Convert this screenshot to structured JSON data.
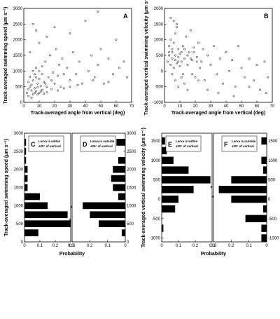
{
  "chart_data": [
    {
      "panel": "A",
      "type": "scatter",
      "xlabel": "Track-averaged angle from vertical (deg)",
      "ylabel": "Track-averaged swimming speed (μm s⁻¹)",
      "xlim": [
        0,
        70
      ],
      "ylim": [
        0,
        3000
      ],
      "xticks": [
        0,
        10,
        20,
        30,
        40,
        50,
        60,
        70
      ],
      "yticks": [
        0,
        500,
        1000,
        1500,
        2000,
        2500,
        3000
      ],
      "points": [
        [
          2,
          300
        ],
        [
          3,
          420
        ],
        [
          3,
          650
        ],
        [
          4,
          500
        ],
        [
          4,
          820
        ],
        [
          5,
          380
        ],
        [
          5,
          560
        ],
        [
          6,
          250
        ],
        [
          6,
          700
        ],
        [
          7,
          450
        ],
        [
          7,
          900
        ],
        [
          8,
          350
        ],
        [
          8,
          1100
        ],
        [
          9,
          600
        ],
        [
          9,
          480
        ],
        [
          10,
          300
        ],
        [
          10,
          750
        ],
        [
          11,
          520
        ],
        [
          12,
          900
        ],
        [
          12,
          400
        ],
        [
          13,
          650
        ],
        [
          14,
          1300
        ],
        [
          15,
          500
        ],
        [
          16,
          800
        ],
        [
          17,
          1500
        ],
        [
          18,
          700
        ],
        [
          19,
          950
        ],
        [
          20,
          600
        ],
        [
          21,
          1700
        ],
        [
          22,
          850
        ],
        [
          23,
          1200
        ],
        [
          24,
          500
        ],
        [
          25,
          1400
        ],
        [
          26,
          900
        ],
        [
          28,
          1100
        ],
        [
          30,
          700
        ],
        [
          32,
          1600
        ],
        [
          34,
          900
        ],
        [
          36,
          1300
        ],
        [
          38,
          600
        ],
        [
          40,
          2600
        ],
        [
          42,
          1000
        ],
        [
          44,
          1500
        ],
        [
          46,
          800
        ],
        [
          48,
          1200
        ],
        [
          50,
          1700
        ],
        [
          52,
          600
        ],
        [
          55,
          1400
        ],
        [
          58,
          900
        ],
        [
          60,
          2000
        ],
        [
          62,
          1100
        ],
        [
          65,
          1300
        ],
        [
          67,
          800
        ],
        [
          4,
          1600
        ],
        [
          6,
          2500
        ],
        [
          8,
          2300
        ],
        [
          10,
          1900
        ],
        [
          15,
          2100
        ],
        [
          20,
          2400
        ],
        [
          30,
          2200
        ],
        [
          48,
          2900
        ],
        [
          3,
          200
        ],
        [
          5,
          150
        ],
        [
          7,
          300
        ],
        [
          9,
          250
        ],
        [
          11,
          350
        ],
        [
          13,
          280
        ],
        [
          15,
          320
        ],
        [
          18,
          420
        ],
        [
          22,
          380
        ],
        [
          26,
          450
        ],
        [
          30,
          500
        ],
        [
          35,
          550
        ],
        [
          45,
          700
        ],
        [
          55,
          650
        ],
        [
          6,
          1000
        ],
        [
          8,
          800
        ],
        [
          10,
          1000
        ],
        [
          12,
          1150
        ],
        [
          14,
          600
        ]
      ]
    },
    {
      "panel": "B",
      "type": "scatter",
      "xlabel": "Track-averaged angle from vertical (deg)",
      "ylabel": "Track-averaged vertical swimming velocity (μm s⁻¹)",
      "xlim": [
        0,
        70
      ],
      "ylim": [
        -1000,
        2000
      ],
      "xticks": [
        0,
        10,
        20,
        30,
        40,
        50,
        60,
        70
      ],
      "yticks": [
        -1000,
        -500,
        0,
        500,
        1000,
        1500,
        2000
      ],
      "points": [
        [
          2,
          300
        ],
        [
          3,
          500
        ],
        [
          3,
          800
        ],
        [
          4,
          200
        ],
        [
          4,
          1000
        ],
        [
          5,
          400
        ],
        [
          5,
          600
        ],
        [
          6,
          100
        ],
        [
          6,
          900
        ],
        [
          7,
          350
        ],
        [
          7,
          1200
        ],
        [
          8,
          250
        ],
        [
          8,
          1500
        ],
        [
          9,
          450
        ],
        [
          9,
          700
        ],
        [
          10,
          150
        ],
        [
          10,
          550
        ],
        [
          11,
          300
        ],
        [
          12,
          800
        ],
        [
          12,
          -100
        ],
        [
          13,
          400
        ],
        [
          14,
          1100
        ],
        [
          15,
          200
        ],
        [
          16,
          600
        ],
        [
          17,
          1300
        ],
        [
          18,
          350
        ],
        [
          19,
          750
        ],
        [
          20,
          -200
        ],
        [
          21,
          450
        ],
        [
          22,
          900
        ],
        [
          23,
          100
        ],
        [
          24,
          300
        ],
        [
          25,
          700
        ],
        [
          26,
          -300
        ],
        [
          28,
          500
        ],
        [
          30,
          200
        ],
        [
          32,
          800
        ],
        [
          34,
          -100
        ],
        [
          36,
          400
        ],
        [
          38,
          -400
        ],
        [
          40,
          600
        ],
        [
          42,
          0
        ],
        [
          44,
          350
        ],
        [
          46,
          -500
        ],
        [
          48,
          800
        ],
        [
          50,
          100
        ],
        [
          52,
          -200
        ],
        [
          55,
          400
        ],
        [
          58,
          -300
        ],
        [
          60,
          200
        ],
        [
          62,
          -600
        ],
        [
          65,
          300
        ],
        [
          67,
          -200
        ],
        [
          4,
          1700
        ],
        [
          6,
          1600
        ],
        [
          8,
          1400
        ],
        [
          5,
          -100
        ],
        [
          7,
          -300
        ],
        [
          9,
          -500
        ],
        [
          11,
          -200
        ],
        [
          13,
          -400
        ],
        [
          15,
          -600
        ],
        [
          18,
          -100
        ],
        [
          22,
          -300
        ],
        [
          28,
          -600
        ],
        [
          35,
          -700
        ],
        [
          45,
          -800
        ],
        [
          55,
          -500
        ],
        [
          66,
          -700
        ],
        [
          3,
          600
        ],
        [
          5,
          700
        ],
        [
          7,
          500
        ],
        [
          9,
          300
        ],
        [
          11,
          600
        ],
        [
          13,
          700
        ],
        [
          15,
          500
        ],
        [
          17,
          400
        ],
        [
          19,
          600
        ],
        [
          21,
          300
        ]
      ]
    },
    {
      "panel": "C",
      "type": "bar",
      "orientation": "horizontal",
      "ylabel": "Track-averaged swimming speed (μm s⁻¹)",
      "xlabel": "Probability",
      "xlim": [
        0,
        0.3
      ],
      "xticks": [
        0,
        0.1,
        0.2,
        0.3
      ],
      "ylim": [
        0,
        3000
      ],
      "yticks": [
        0,
        500,
        1000,
        1500,
        2000,
        2500,
        3000
      ],
      "note": "Larva is within ±25° of vertical",
      "bin_centers": [
        250,
        500,
        750,
        1000,
        1250,
        1500,
        1750,
        2000,
        2250,
        2500,
        2750
      ],
      "values": [
        0.09,
        0.3,
        0.28,
        0.15,
        0.1,
        0.02,
        0.02,
        0.02,
        0.01,
        0.01,
        0.01
      ],
      "marker": {
        "symbol": "*",
        "y": 600
      }
    },
    {
      "panel": "D",
      "type": "bar",
      "orientation": "horizontal",
      "direction": "reversed",
      "xlim": [
        0.3,
        0
      ],
      "xticks": [
        0.3,
        0.2,
        0.1,
        0
      ],
      "ylim": [
        0,
        3000
      ],
      "yticks": [
        0,
        500,
        1000,
        1500,
        2000,
        2500,
        3000
      ],
      "note": "Larva is outside ±25° of vertical",
      "bin_centers": [
        250,
        500,
        750,
        1000,
        1250,
        1500,
        1750,
        2000,
        2250,
        2500,
        2750
      ],
      "values": [
        0.02,
        0.15,
        0.2,
        0.24,
        0.04,
        0.07,
        0.08,
        0.07,
        0.04,
        0.0,
        0.05
      ],
      "marker": {
        "symbol": "*",
        "y": 950
      }
    },
    {
      "panel": "E",
      "type": "bar",
      "orientation": "horizontal",
      "ylabel": "Track-averaged vertical swimming velocity (μm s⁻¹)",
      "xlabel": "Probability",
      "xlim": [
        0,
        0.3
      ],
      "xticks": [
        0,
        0.1,
        0.2,
        0.3
      ],
      "ylim": [
        -1100,
        1700
      ],
      "yticks": [
        -1000,
        -500,
        0,
        500,
        1000,
        1500
      ],
      "note": "Larva is within ±25° of vertical",
      "bin_centers": [
        -1000,
        -750,
        -500,
        -250,
        0,
        250,
        500,
        750,
        1000,
        1250,
        1500
      ],
      "values": [
        0.0,
        0.01,
        0.0,
        0.08,
        0.1,
        0.19,
        0.29,
        0.16,
        0.07,
        0.03,
        0.02
      ],
      "marker": {
        "symbol": "*",
        "y": 300
      }
    },
    {
      "panel": "F",
      "type": "bar",
      "orientation": "horizontal",
      "direction": "reversed",
      "xlim": [
        0.3,
        0
      ],
      "xticks": [
        0.3,
        0.2,
        0.1,
        0
      ],
      "ylim": [
        -1100,
        1700
      ],
      "yticks": [
        -1000,
        -500,
        0,
        500,
        1000,
        1500
      ],
      "note": "Larva is outside ±25° of vertical",
      "bin_centers": [
        -1000,
        -750,
        -500,
        -250,
        0,
        250,
        500,
        750,
        1000,
        1250,
        1500
      ],
      "values": [
        0.03,
        0.03,
        0.12,
        0.02,
        0.2,
        0.27,
        0.2,
        0.02,
        0.03,
        0.0,
        0.03
      ],
      "marker": {
        "symbol": "*",
        "y": 50
      }
    }
  ]
}
